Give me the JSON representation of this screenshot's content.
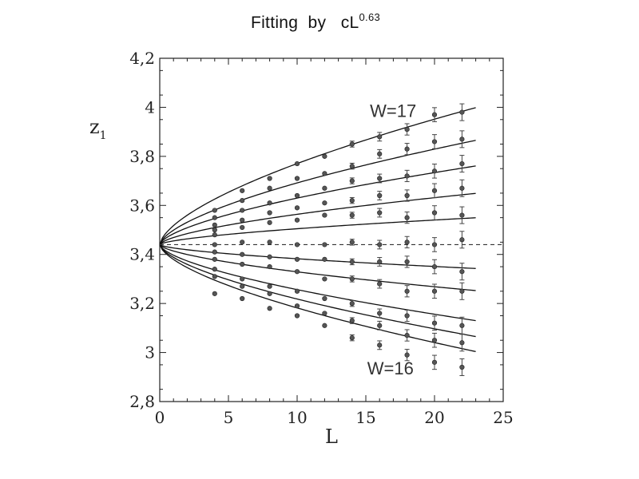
{
  "title": {
    "prefix": "Fitting  by   cL",
    "exponent": "0.63"
  },
  "chart_data": {
    "type": "scatter",
    "xlabel": "L",
    "ylabel": "z",
    "ylabel_subscript": "1",
    "xlim": [
      0,
      25
    ],
    "ylim": [
      2.8,
      4.2
    ],
    "x_ticks": [
      0,
      5,
      10,
      15,
      20,
      25
    ],
    "x_tick_labels": [
      "0",
      "5",
      "10",
      "15",
      "20",
      "25"
    ],
    "y_ticks": [
      2.8,
      3.0,
      3.2,
      3.4,
      3.6,
      3.8,
      4.0,
      4.2
    ],
    "y_tick_labels": [
      "2,8",
      "3",
      "3,2",
      "3,4",
      "3,6",
      "3,8",
      "4",
      "4,2"
    ],
    "grid": false,
    "fit": {
      "form": "z1 = 3.44 + c L^0.63",
      "z0": 3.44,
      "exponent": 0.63,
      "x_range": [
        0,
        23
      ]
    },
    "critical_line": {
      "y": 3.44,
      "style": "dashed"
    },
    "annotations": [
      {
        "text": "W=17",
        "x": 15.3,
        "y": 3.96
      },
      {
        "text": "W=16",
        "x": 15.1,
        "y": 2.91
      }
    ],
    "series": [
      {
        "c": 0.0775,
        "x": [
          4,
          6,
          8,
          10,
          12,
          14,
          16,
          18,
          20,
          22
        ],
        "y": [
          3.58,
          3.66,
          3.71,
          3.77,
          3.8,
          3.85,
          3.88,
          3.91,
          3.97,
          3.98
        ]
      },
      {
        "c": 0.059,
        "x": [
          4,
          6,
          8,
          10,
          12,
          14,
          16,
          18,
          20,
          22
        ],
        "y": [
          3.55,
          3.62,
          3.67,
          3.71,
          3.73,
          3.76,
          3.81,
          3.83,
          3.86,
          3.87
        ]
      },
      {
        "c": 0.0445,
        "x": [
          4,
          6,
          8,
          10,
          12,
          14,
          16,
          18,
          20,
          22
        ],
        "y": [
          3.52,
          3.58,
          3.61,
          3.64,
          3.67,
          3.7,
          3.71,
          3.72,
          3.74,
          3.77
        ]
      },
      {
        "c": 0.029,
        "x": [
          4,
          6,
          8,
          10,
          12,
          14,
          16,
          18,
          20,
          22
        ],
        "y": [
          3.5,
          3.54,
          3.57,
          3.59,
          3.61,
          3.62,
          3.64,
          3.64,
          3.66,
          3.67
        ]
      },
      {
        "c": 0.0152,
        "x": [
          4,
          6,
          8,
          10,
          12,
          14,
          16,
          18,
          20,
          22
        ],
        "y": [
          3.48,
          3.51,
          3.53,
          3.54,
          3.56,
          3.56,
          3.57,
          3.55,
          3.57,
          3.56
        ]
      },
      {
        "c": 0.0,
        "x": [
          4,
          6,
          8,
          10,
          12,
          14,
          16,
          18,
          20,
          22
        ],
        "y": [
          3.44,
          3.45,
          3.45,
          3.44,
          3.44,
          3.45,
          3.44,
          3.45,
          3.44,
          3.46
        ]
      },
      {
        "c": -0.0135,
        "x": [
          4,
          6,
          8,
          10,
          12,
          14,
          16,
          18,
          20,
          22
        ],
        "y": [
          3.41,
          3.4,
          3.39,
          3.38,
          3.38,
          3.37,
          3.37,
          3.37,
          3.35,
          3.33
        ]
      },
      {
        "c": -0.026,
        "x": [
          4,
          6,
          8,
          10,
          12,
          14,
          16,
          18,
          20,
          22
        ],
        "y": [
          3.38,
          3.36,
          3.35,
          3.33,
          3.3,
          3.3,
          3.28,
          3.25,
          3.25,
          3.25
        ]
      },
      {
        "c": -0.043,
        "x": [
          4,
          6,
          8,
          10,
          12,
          14,
          16,
          18,
          20,
          22
        ],
        "y": [
          3.34,
          3.3,
          3.27,
          3.25,
          3.22,
          3.2,
          3.16,
          3.15,
          3.12,
          3.11
        ]
      },
      {
        "c": -0.052,
        "x": [
          4,
          6,
          8,
          10,
          12,
          14,
          16,
          18,
          20,
          22
        ],
        "y": [
          3.31,
          3.27,
          3.24,
          3.19,
          3.16,
          3.13,
          3.11,
          3.07,
          3.05,
          3.04
        ]
      },
      {
        "c": -0.0605,
        "x": [
          4,
          6,
          8,
          10,
          12,
          14,
          16,
          18,
          20,
          22
        ],
        "y": [
          3.24,
          3.22,
          3.18,
          3.15,
          3.11,
          3.06,
          3.03,
          2.99,
          2.96,
          2.94
        ]
      }
    ]
  }
}
